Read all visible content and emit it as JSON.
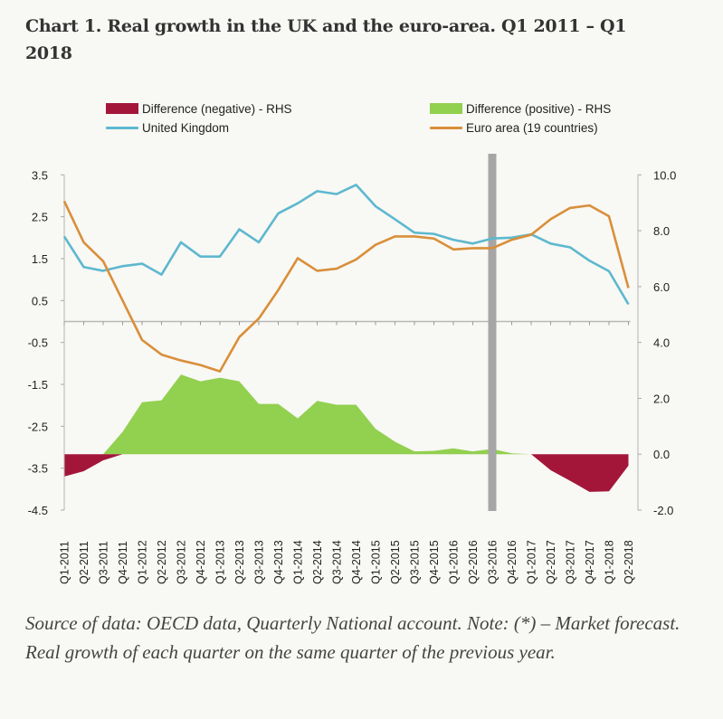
{
  "title": {
    "line1": "Chart 1. Real growth in the UK and the euro-area. Q1 2011 – Q1",
    "line2": "2018"
  },
  "footnote": "Source of data: OECD data, Quarterly National account. Note: (*) – Market forecast. Real growth of each quarter on the same quarter of the previous year.",
  "legend": [
    {
      "label": "Difference (negative) - RHS",
      "kind": "box",
      "color": "#a3163a"
    },
    {
      "label": "Difference (positive) - RHS",
      "kind": "box",
      "color": "#92d050"
    },
    {
      "label": "United Kingdom",
      "kind": "line",
      "color": "#5db8cf"
    },
    {
      "label": "Euro area (19 countries)",
      "kind": "line",
      "color": "#d98f3a"
    }
  ],
  "chart_data": {
    "type": "line",
    "title": "Chart 1. Real growth in the UK and the euro-area. Q1 2011 – Q1 2018",
    "xlabel": "",
    "ylabel": "",
    "categories": [
      "Q1-2011",
      "Q2-2011",
      "Q3-2011",
      "Q4-2011",
      "Q1-2012",
      "Q2-2012",
      "Q3-2012",
      "Q4-2012",
      "Q1-2013",
      "Q2-2013",
      "Q3-2013",
      "Q4-2013",
      "Q1-2014",
      "Q2-2014",
      "Q3-2014",
      "Q4-2014",
      "Q1-2015",
      "Q2-2015",
      "Q3-2015",
      "Q4-2015",
      "Q1-2016",
      "Q2-2016",
      "Q3-2016",
      "Q4-2016",
      "Q1-2017",
      "Q2-2017",
      "Q3-2017",
      "Q4-2017",
      "Q1-2018",
      "Q2-2018"
    ],
    "ylim_left": [
      -4.5,
      3.5
    ],
    "left_ticks": [
      "3.5",
      "2.5",
      "1.5",
      "0.5",
      "-0.5",
      "-1.5",
      "-2.5",
      "-3.5",
      "-4.5"
    ],
    "left_tick_values": [
      3.5,
      2.5,
      1.5,
      0.5,
      -0.5,
      -1.5,
      -2.5,
      -3.5,
      -4.5
    ],
    "ylim_right": [
      -2.0,
      10.0
    ],
    "right_ticks": [
      "10.0",
      "8.0",
      "6.0",
      "4.0",
      "2.0",
      "0.0",
      "-2.0"
    ],
    "right_tick_values": [
      10,
      8,
      6,
      4,
      2,
      0,
      -2
    ],
    "x_axis_at_left_value": -0.0,
    "grid": false,
    "legend_position": "top",
    "marker_category": "Q3-2016",
    "marker_color": "#a6a6a6",
    "series": [
      {
        "name": "United Kingdom",
        "type": "line",
        "axis": "left",
        "color": "#5db8cf",
        "values": [
          2.03,
          1.3,
          1.21,
          1.32,
          1.38,
          1.12,
          1.89,
          1.55,
          1.55,
          2.2,
          1.89,
          2.58,
          2.82,
          3.11,
          3.04,
          3.26,
          2.75,
          2.44,
          2.12,
          2.09,
          1.95,
          1.86,
          1.98,
          2.0,
          2.08,
          1.86,
          1.77,
          1.45,
          1.2,
          0.41
        ]
      },
      {
        "name": "Euro area (19 countries)",
        "type": "line",
        "axis": "left",
        "color": "#d98f3a",
        "values": [
          2.87,
          1.89,
          1.44,
          0.5,
          -0.44,
          -0.79,
          -0.93,
          -1.04,
          -1.19,
          -0.37,
          0.07,
          0.75,
          1.51,
          1.21,
          1.26,
          1.48,
          1.83,
          2.03,
          2.03,
          1.98,
          1.72,
          1.75,
          1.75,
          1.95,
          2.07,
          2.44,
          2.71,
          2.77,
          2.51,
          0.8
        ]
      },
      {
        "name": "Difference (positive) - RHS",
        "type": "area",
        "axis": "right",
        "color": "#92d050",
        "values": [
          0,
          0,
          0,
          0.8,
          1.86,
          1.93,
          2.85,
          2.61,
          2.74,
          2.61,
          1.8,
          1.8,
          1.28,
          1.91,
          1.77,
          1.77,
          0.91,
          0.45,
          0.1,
          0.12,
          0.21,
          0.1,
          0.19,
          0.03,
          0,
          0,
          0,
          0,
          0,
          0
        ]
      },
      {
        "name": "Difference (negative) - RHS",
        "type": "area",
        "axis": "right",
        "color": "#a3163a",
        "values": [
          -0.8,
          -0.61,
          -0.22,
          0,
          0,
          0,
          0,
          0,
          0,
          0,
          0,
          0,
          0,
          0,
          0,
          0,
          0,
          0,
          0,
          0,
          0,
          0,
          0,
          0,
          0,
          -0.57,
          -0.95,
          -1.35,
          -1.33,
          -0.41
        ]
      }
    ]
  }
}
